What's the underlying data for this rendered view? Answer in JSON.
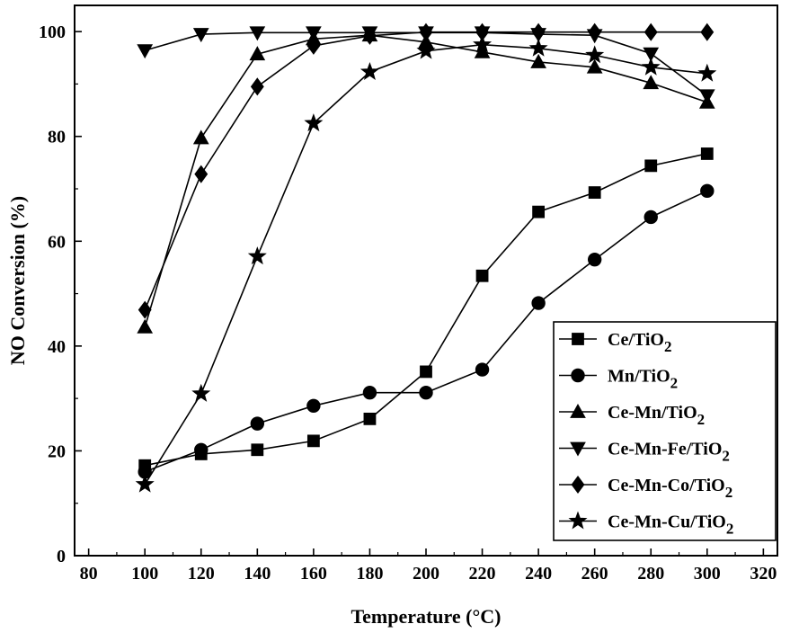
{
  "chart_data": {
    "type": "line",
    "xlabel": "Temperature (°C)",
    "ylabel": "NO Conversion (%)",
    "xlim": [
      75,
      325
    ],
    "ylim": [
      0,
      105
    ],
    "xticks": [
      80,
      100,
      120,
      140,
      160,
      180,
      200,
      220,
      240,
      260,
      280,
      300,
      320
    ],
    "yticks": [
      0,
      20,
      40,
      60,
      80,
      100
    ],
    "grid": false,
    "legend_position": "bottom-right",
    "series": [
      {
        "name": "Ce/TiO",
        "subscript": "2",
        "marker": "square",
        "x": [
          100,
          120,
          140,
          160,
          180,
          200,
          220,
          240,
          260,
          280,
          300
        ],
        "y": [
          17.2,
          19.4,
          20.2,
          21.9,
          26.1,
          35.1,
          53.4,
          65.6,
          69.3,
          74.4,
          76.7
        ]
      },
      {
        "name": "Mn/TiO",
        "subscript": "2",
        "marker": "circle",
        "x": [
          100,
          120,
          140,
          160,
          180,
          200,
          220,
          240,
          260,
          280,
          300
        ],
        "y": [
          16.0,
          20.2,
          25.2,
          28.6,
          31.1,
          31.1,
          35.5,
          48.2,
          56.5,
          64.6,
          69.6
        ]
      },
      {
        "name": "Ce-Mn/TiO",
        "subscript": "2",
        "marker": "triangle-up",
        "x": [
          100,
          120,
          140,
          160,
          180,
          200,
          220,
          240,
          260,
          280,
          300
        ],
        "y": [
          43.6,
          79.7,
          95.7,
          98.6,
          99.3,
          98.0,
          96.1,
          94.2,
          93.2,
          90.2,
          86.5
        ]
      },
      {
        "name": "Ce-Mn-Fe/TiO",
        "subscript": "2",
        "marker": "triangle-down",
        "x": [
          100,
          120,
          140,
          160,
          180,
          200,
          220,
          240,
          260,
          280,
          300
        ],
        "y": [
          96.4,
          99.5,
          99.8,
          99.8,
          99.8,
          99.8,
          99.8,
          99.5,
          99.3,
          95.8,
          87.8
        ]
      },
      {
        "name": "Ce-Mn-Co/TiO",
        "subscript": "2",
        "marker": "diamond",
        "x": [
          100,
          120,
          140,
          160,
          180,
          200,
          220,
          240,
          260,
          280,
          300
        ],
        "y": [
          46.9,
          72.8,
          89.5,
          97.3,
          99.2,
          99.9,
          99.9,
          99.9,
          99.9,
          99.9,
          99.9
        ]
      },
      {
        "name": "Ce-Mn-Cu/TiO",
        "subscript": "2",
        "marker": "star",
        "x": [
          100,
          120,
          140,
          160,
          180,
          200,
          220,
          240,
          260,
          280,
          300
        ],
        "y": [
          13.6,
          30.9,
          57.1,
          82.5,
          92.3,
          96.3,
          97.5,
          96.8,
          95.5,
          93.2,
          92.0
        ]
      }
    ]
  }
}
